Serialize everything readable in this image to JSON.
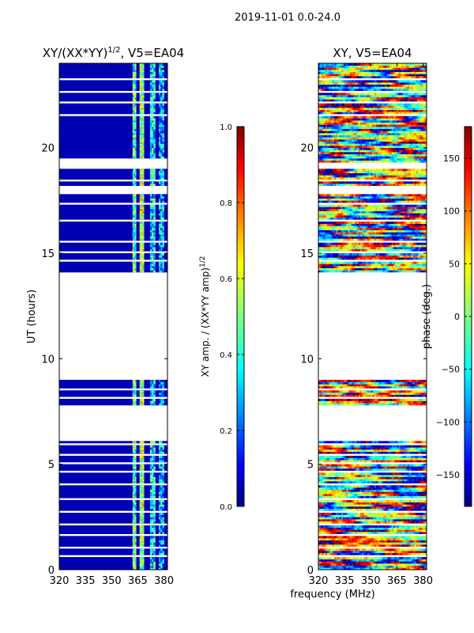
{
  "figure": {
    "suptitle": "2019-11-01 0.0-24.0",
    "shared_xlabel": "frequency (MHz)"
  },
  "colors": {
    "jet": [
      "#00007f",
      "#0000ff",
      "#007fff",
      "#00ffff",
      "#7fff7f",
      "#ffff00",
      "#ff7f00",
      "#ff0000",
      "#7f0000"
    ],
    "missing": "#ffffff"
  },
  "chart_data": [
    {
      "type": "heatmap",
      "title_prefix": "XY/(XX*YY)",
      "title_exp": "1/2",
      "title_suffix": ", V5=EA04",
      "xlabel": "",
      "ylabel": "UT (hours)",
      "xlim": [
        320,
        382
      ],
      "ylim": [
        0,
        24
      ],
      "xticks": [
        320,
        335,
        350,
        365,
        380
      ],
      "yticks": [
        0,
        5,
        10,
        15,
        20
      ],
      "colorbar": {
        "label_prefix": "XY amp. / (XX*YY amp)",
        "label_exp": "1/2",
        "range": [
          0.0,
          1.0
        ],
        "ticks": [
          "0.0",
          "0.2",
          "0.4",
          "0.6",
          "0.8",
          "1.0"
        ]
      },
      "valid_hours": [
        [
          0.0,
          6.1
        ],
        [
          7.8,
          9.0
        ],
        [
          14.1,
          17.8
        ],
        [
          18.2,
          19.0
        ],
        [
          19.5,
          24.0
        ]
      ],
      "gap_hours": [
        [
          0.6,
          0.7
        ],
        [
          1.0,
          1.1
        ],
        [
          1.6,
          1.7
        ],
        [
          2.1,
          2.2
        ],
        [
          2.7,
          2.8
        ],
        [
          3.3,
          3.4
        ],
        [
          4.0,
          4.1
        ],
        [
          4.6,
          4.7
        ],
        [
          5.0,
          5.1
        ],
        [
          5.4,
          5.5
        ],
        [
          5.9,
          6.0
        ],
        [
          8.1,
          8.2
        ],
        [
          8.5,
          8.6
        ],
        [
          14.6,
          14.7
        ],
        [
          15.0,
          15.1
        ],
        [
          15.5,
          15.6
        ],
        [
          16.5,
          16.6
        ],
        [
          17.3,
          17.4
        ],
        [
          18.4,
          18.5
        ],
        [
          21.5,
          21.6
        ],
        [
          22.1,
          22.2
        ],
        [
          22.6,
          22.7
        ],
        [
          23.2,
          23.3
        ]
      ],
      "features": [
        {
          "name": "baseline",
          "xrange": [
            320,
            382
          ],
          "value": 0.05
        },
        {
          "name": "rfi-band-1",
          "xrange": [
            362,
            364
          ],
          "value": 0.45
        },
        {
          "name": "rfi-band-2",
          "xrange": [
            366,
            368.5
          ],
          "value": 0.55
        },
        {
          "name": "rfi-band-3",
          "xrange": [
            372,
            375
          ],
          "value": 0.35
        },
        {
          "name": "rfi-band-4",
          "xrange": [
            377,
            380
          ],
          "value": 0.3
        }
      ]
    },
    {
      "type": "heatmap",
      "title": "XY, V5=EA04",
      "xlabel": "frequency (MHz)",
      "ylabel": "",
      "xlim": [
        320,
        382
      ],
      "ylim": [
        0,
        24
      ],
      "xticks": [
        320,
        335,
        350,
        365,
        380
      ],
      "yticks": [
        0,
        5,
        10,
        15,
        20
      ],
      "colorbar": {
        "label": "phase (deg.)",
        "range": [
          -180,
          180
        ],
        "ticks": [
          "−150",
          "−100",
          "−50",
          "0",
          "50",
          "100",
          "150"
        ],
        "tick_values": [
          -150,
          -100,
          -50,
          0,
          50,
          100,
          150
        ]
      },
      "valid_hours": [
        [
          0.0,
          6.1
        ],
        [
          7.8,
          9.0
        ],
        [
          14.1,
          17.8
        ],
        [
          18.2,
          19.0
        ],
        [
          19.3,
          24.0
        ]
      ],
      "gap_hours": [
        [
          0.6,
          0.7
        ],
        [
          1.0,
          1.1
        ],
        [
          1.6,
          1.7
        ],
        [
          2.1,
          2.2
        ],
        [
          2.7,
          2.8
        ],
        [
          3.3,
          3.4
        ],
        [
          4.0,
          4.1
        ],
        [
          4.6,
          4.7
        ],
        [
          5.0,
          5.1
        ],
        [
          5.4,
          5.5
        ],
        [
          5.9,
          6.0
        ],
        [
          8.1,
          8.2
        ],
        [
          8.5,
          8.6
        ],
        [
          14.6,
          14.7
        ],
        [
          15.0,
          15.1
        ],
        [
          15.5,
          15.6
        ],
        [
          16.5,
          16.6
        ],
        [
          17.3,
          17.4
        ],
        [
          18.4,
          18.5
        ],
        [
          21.5,
          21.6
        ],
        [
          22.1,
          22.2
        ],
        [
          22.6,
          22.7
        ],
        [
          23.2,
          23.3
        ]
      ],
      "features": [
        {
          "name": "phase-scatter",
          "xrange": [
            320,
            382
          ],
          "value_range": [
            -180,
            180
          ]
        }
      ]
    }
  ]
}
